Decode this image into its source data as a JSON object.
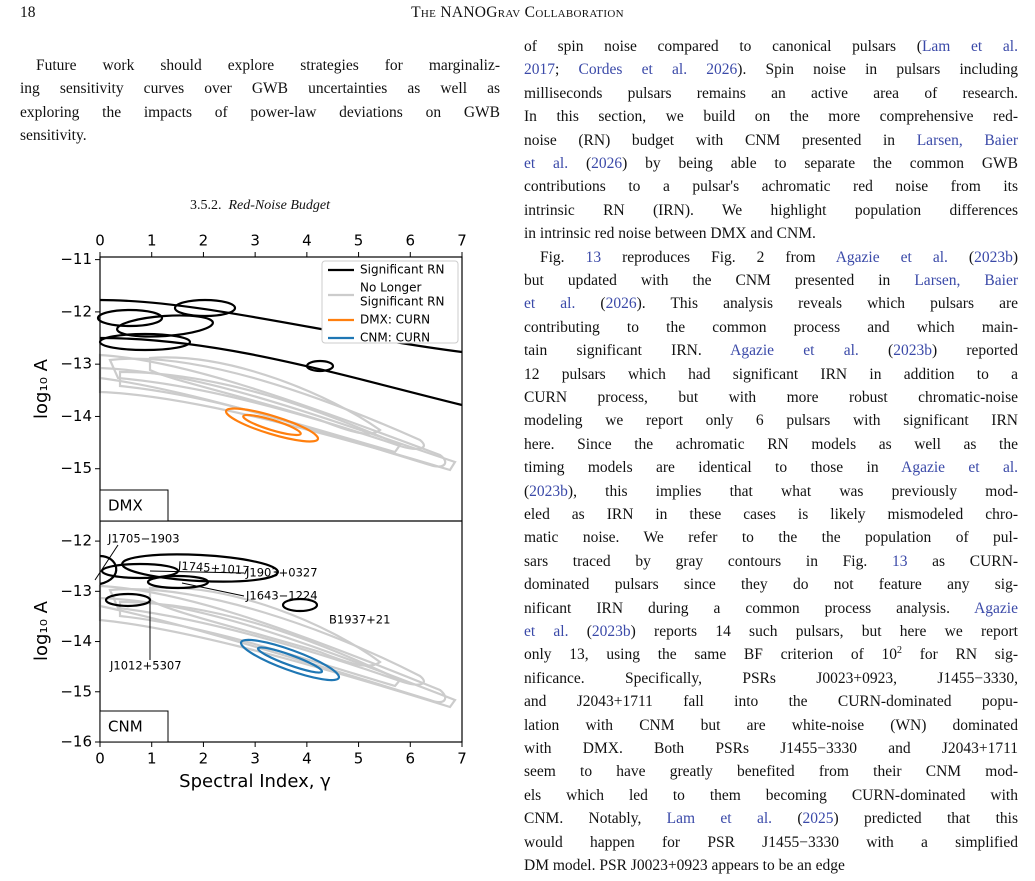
{
  "header": {
    "page_number": "18",
    "running_title": "The NANOGrav Collaboration"
  },
  "left_column": {
    "paragraphs": [
      {
        "lines": [
          [
            "Future work should explore strategies for marginaliz-"
          ],
          [
            "ing sensitivity curves over GWB uncertainties as well as"
          ],
          [
            "exploring the impacts of power-law deviations on GWB"
          ],
          [
            "sensitivity."
          ]
        ]
      }
    ],
    "section": {
      "number": "3.5.2.",
      "title": "Red-Noise Budget"
    }
  },
  "figure": {
    "top_xticks": [
      0,
      1,
      2,
      3,
      4,
      5,
      6,
      7
    ],
    "xticks": [
      0,
      1,
      2,
      3,
      4,
      5,
      6,
      7
    ],
    "xlim": [
      0,
      7
    ],
    "xlabel": "Spectral Index, γ",
    "ylabel": "log₁₀ A",
    "panels": [
      {
        "label": "DMX",
        "ylim": [
          -16,
          -10.95
        ],
        "yticks": [
          {
            "value": -11,
            "label": "−11"
          },
          {
            "value": -12,
            "label": "−12"
          },
          {
            "value": -13,
            "label": "−13"
          },
          {
            "value": -14,
            "label": "−14"
          },
          {
            "value": -15,
            "label": "−15"
          }
        ]
      },
      {
        "label": "CNM",
        "ylim": [
          -16,
          -11.6
        ],
        "yticks": [
          {
            "value": -12,
            "label": "−12"
          },
          {
            "value": -13,
            "label": "−13"
          },
          {
            "value": -14,
            "label": "−14"
          },
          {
            "value": -15,
            "label": "−15"
          },
          {
            "value": -16,
            "label": "−16"
          }
        ]
      }
    ],
    "legend": [
      {
        "lines": [
          "Significant RN"
        ],
        "color": "#000000"
      },
      {
        "lines": [
          "No Longer",
          "Significant RN"
        ],
        "color": "#cccccc"
      },
      {
        "lines": [
          "DMX: CURN"
        ],
        "color": "#ff7f0e"
      },
      {
        "lines": [
          "CNM: CURN"
        ],
        "color": "#1f77b4"
      }
    ],
    "annotations": [
      "J1705−1903",
      "J1745+1017",
      "J1903+0327",
      "J1643−1224",
      "B1937+21",
      "J1012+5307"
    ]
  },
  "right_column": {
    "paragraphs": [
      {
        "lines": [
          [
            "of spin noise compared to canonical pulsars (",
            {
              "cite": "Lam et al."
            }
          ],
          [
            {
              "cite": "2017"
            },
            "; ",
            {
              "cite": "Cordes et al. 2026"
            },
            "). Spin noise in pulsars including"
          ],
          [
            "milliseconds pulsars remains an active area of research."
          ],
          [
            "In this section, we build on the more comprehensive red-"
          ],
          [
            "noise (RN) budget with CNM presented in ",
            {
              "cite": "Larsen, Baier"
            }
          ],
          [
            {
              "cite": "et al."
            },
            " (",
            {
              "cite": "2026"
            },
            ") by being able to separate the common GWB"
          ],
          [
            "contributions to a pulsar's achromatic red noise from its"
          ],
          [
            "intrinsic RN (IRN). We highlight population differences"
          ],
          [
            "in intrinsic red noise between DMX and CNM."
          ]
        ]
      },
      {
        "lines": [
          [
            "Fig. ",
            {
              "cite": "13"
            },
            " reproduces Fig. 2 from ",
            {
              "cite": "Agazie et al."
            },
            " (",
            {
              "cite": "2023b"
            },
            ")"
          ],
          [
            "but updated with the CNM presented in ",
            {
              "cite": "Larsen, Baier"
            }
          ],
          [
            {
              "cite": "et al."
            },
            " (",
            {
              "cite": "2026"
            },
            ").  This analysis reveals which pulsars are"
          ],
          [
            "contributing to the common process and which main-"
          ],
          [
            "tain significant IRN. ",
            {
              "cite": "Agazie et al."
            },
            " (",
            {
              "cite": "2023b"
            },
            ") reported"
          ],
          [
            "12 pulsars which had significant IRN in addition to a"
          ],
          [
            "CURN process, but with more robust chromatic-noise"
          ],
          [
            "modeling we report only 6 pulsars with significant IRN"
          ],
          [
            "here.  Since the achromatic RN models as well as the"
          ],
          [
            "timing models are identical to those in ",
            {
              "cite": "Agazie et al."
            }
          ],
          [
            "(",
            {
              "cite": "2023b"
            },
            "), this implies that what was previously mod-"
          ],
          [
            "eled as IRN in these cases is likely mismodeled chro-"
          ],
          [
            "matic noise.  We refer to the the population of pul-"
          ],
          [
            "sars traced by gray contours in Fig. ",
            {
              "cite": "13"
            },
            " as CURN-"
          ],
          [
            "dominated pulsars since they do not feature any sig-"
          ],
          [
            "nificant IRN during a common process analysis. ",
            {
              "cite": "Agazie"
            }
          ],
          [
            {
              "cite": "et al."
            },
            " (",
            {
              "cite": "2023b"
            },
            ") reports 14 such pulsars, but here we report"
          ],
          [
            "only 13, using the same BF criterion of 10",
            {
              "sup": "2"
            },
            " for RN sig-"
          ],
          [
            "nificance. Specifically, PSRs J0023+0923, J1455−3330,"
          ],
          [
            "and J2043+1711 fall into the CURN-dominated popu-"
          ],
          [
            "lation with CNM but are white-noise (WN) dominated"
          ],
          [
            "with DMX. Both PSRs J1455−3330 and J2043+1711"
          ],
          [
            "seem to have greatly benefited from their CNM mod-"
          ],
          [
            "els which led to them becoming CURN-dominated with"
          ],
          [
            "CNM. Notably, ",
            {
              "cite": "Lam et al."
            },
            " (",
            {
              "cite": "2025"
            },
            ") predicted that this"
          ],
          [
            "would happen for PSR J1455−3330 with a simplified"
          ],
          [
            "DM model.  PSR J0023+0923 appears to be an edge"
          ]
        ]
      }
    ]
  }
}
